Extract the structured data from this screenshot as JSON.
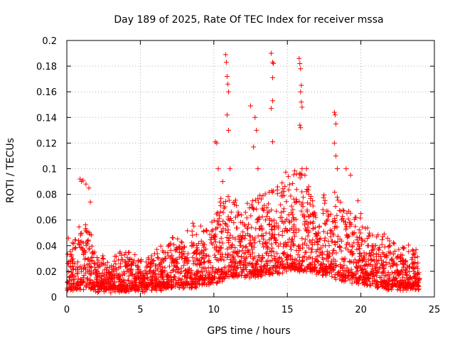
{
  "chart_data": {
    "type": "scatter",
    "title": "Day 189 of 2025, Rate Of TEC Index for receiver mssa",
    "xlabel": "GPS time / hours",
    "ylabel": "ROTI / TECUs",
    "xlim": [
      0,
      25
    ],
    "ylim": [
      0,
      0.2
    ],
    "x_ticks": [
      0,
      5,
      10,
      15,
      20,
      25
    ],
    "x_tick_labels": [
      "0",
      "5",
      "10",
      "15",
      "20",
      "25"
    ],
    "y_ticks": [
      0,
      0.02,
      0.04,
      0.06,
      0.08,
      0.1,
      0.12,
      0.14,
      0.16,
      0.18,
      0.2
    ],
    "y_tick_labels": [
      "0",
      "0.02",
      "0.04",
      "0.06",
      "0.08",
      "0.1",
      "0.12",
      "0.14",
      "0.16",
      "0.18",
      "0.2"
    ],
    "grid": true,
    "marker": "+",
    "color": "#ff0000",
    "series": [
      {
        "name": "ROTI",
        "envelope": {
          "x": [
            0,
            0.5,
            1,
            1.5,
            2,
            3,
            4,
            5,
            6,
            7,
            8,
            9,
            10,
            10.5,
            11,
            12,
            13,
            14,
            15,
            16,
            17,
            18,
            19,
            20,
            21,
            22,
            23,
            24
          ],
          "base": [
            0.015,
            0.015,
            0.016,
            0.016,
            0.014,
            0.014,
            0.014,
            0.014,
            0.015,
            0.016,
            0.017,
            0.018,
            0.02,
            0.022,
            0.025,
            0.025,
            0.026,
            0.028,
            0.03,
            0.03,
            0.028,
            0.025,
            0.022,
            0.02,
            0.018,
            0.016,
            0.015,
            0.015
          ],
          "top": [
            0.045,
            0.05,
            0.06,
            0.055,
            0.035,
            0.03,
            0.035,
            0.03,
            0.035,
            0.045,
            0.055,
            0.055,
            0.06,
            0.08,
            0.085,
            0.07,
            0.08,
            0.09,
            0.1,
            0.1,
            0.08,
            0.09,
            0.07,
            0.06,
            0.05,
            0.045,
            0.04,
            0.035
          ]
        },
        "peaks": [
          [
            0.9,
            0.092
          ],
          [
            1.0,
            0.09
          ],
          [
            1.1,
            0.091
          ],
          [
            1.3,
            0.088
          ],
          [
            1.5,
            0.085
          ],
          [
            1.6,
            0.074
          ],
          [
            10.1,
            0.121
          ],
          [
            10.2,
            0.12
          ],
          [
            10.3,
            0.1
          ],
          [
            10.6,
            0.09
          ],
          [
            10.8,
            0.189
          ],
          [
            10.85,
            0.183
          ],
          [
            10.9,
            0.172
          ],
          [
            10.95,
            0.166
          ],
          [
            11.0,
            0.16
          ],
          [
            10.9,
            0.142
          ],
          [
            11.0,
            0.13
          ],
          [
            11.1,
            0.1
          ],
          [
            12.5,
            0.149
          ],
          [
            12.8,
            0.14
          ],
          [
            12.9,
            0.13
          ],
          [
            12.7,
            0.117
          ],
          [
            13.0,
            0.1
          ],
          [
            13.9,
            0.19
          ],
          [
            14.0,
            0.183
          ],
          [
            14.05,
            0.182
          ],
          [
            14.0,
            0.171
          ],
          [
            14.0,
            0.153
          ],
          [
            13.9,
            0.147
          ],
          [
            14.0,
            0.121
          ],
          [
            15.8,
            0.186
          ],
          [
            15.85,
            0.182
          ],
          [
            15.9,
            0.178
          ],
          [
            15.95,
            0.165
          ],
          [
            15.9,
            0.16
          ],
          [
            15.95,
            0.152
          ],
          [
            16.0,
            0.148
          ],
          [
            15.85,
            0.134
          ],
          [
            15.9,
            0.132
          ],
          [
            16.0,
            0.1
          ],
          [
            16.3,
            0.1
          ],
          [
            18.2,
            0.144
          ],
          [
            18.25,
            0.142
          ],
          [
            18.3,
            0.135
          ],
          [
            18.2,
            0.12
          ],
          [
            18.3,
            0.11
          ],
          [
            18.4,
            0.1
          ],
          [
            19.0,
            0.1
          ],
          [
            19.3,
            0.095
          ],
          [
            19.8,
            0.075
          ],
          [
            20.0,
            0.065
          ]
        ]
      }
    ]
  }
}
